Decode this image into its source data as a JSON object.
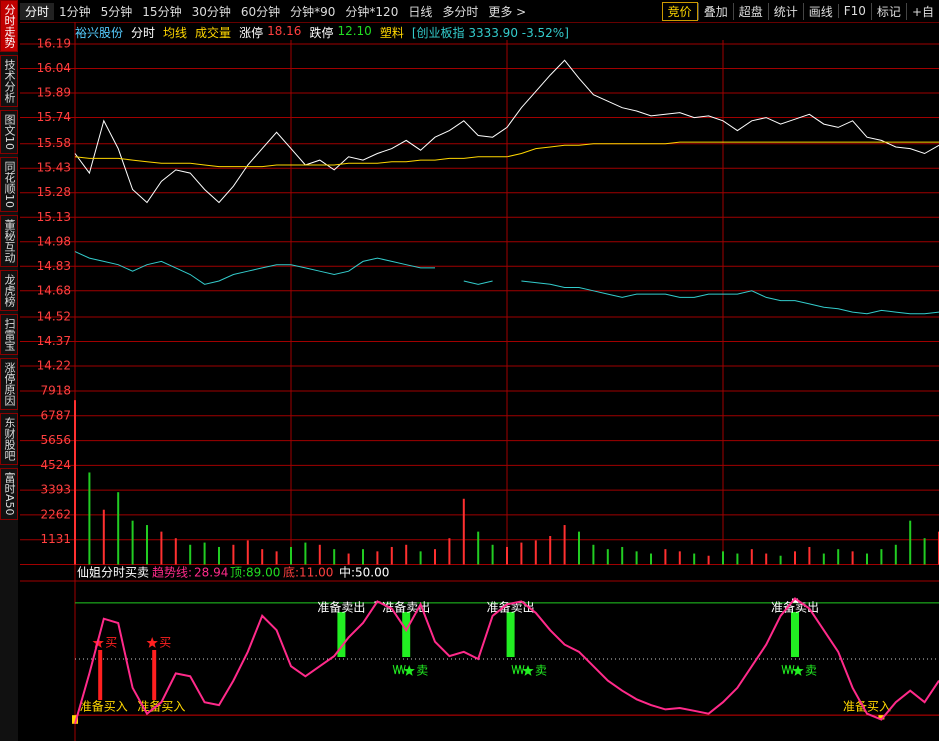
{
  "sidebar": [
    "分时走势",
    "技术分析",
    "图文10",
    "同花顺10",
    "董秘互动",
    "龙虎榜",
    "扫雷宝",
    "涨停原因",
    "东财股吧",
    "富时A50"
  ],
  "toolbar": {
    "left": [
      "分时",
      "1分钟",
      "5分钟",
      "15分钟",
      "30分钟",
      "60分钟",
      "分钟*90",
      "分钟*120",
      "日线",
      "多分时",
      "更多 >"
    ],
    "right": [
      "竞价",
      "叠加",
      "超盘",
      "统计",
      "画线",
      "F10",
      "标记",
      "+自"
    ]
  },
  "info": {
    "stock": "裕兴股份",
    "limit_up_label": "涨停",
    "limit_up": 18.16,
    "limit_down_label": "跌停",
    "limit_down": 12.1,
    "limit_down_text": "12.10",
    "sector": "塑料",
    "index": "[创业板指 3333.90 -3.52%]"
  },
  "chart_data": [
    {
      "type": "line",
      "xlim": [
        0,
        240
      ],
      "ylim": [
        14.22,
        16.19
      ],
      "yticks": [
        16.19,
        16.04,
        15.89,
        15.74,
        15.58,
        15.43,
        15.28,
        15.13,
        14.98,
        14.83,
        14.68,
        14.52,
        14.37,
        14.22
      ],
      "x": [
        0,
        4,
        8,
        12,
        16,
        20,
        24,
        28,
        32,
        36,
        40,
        44,
        48,
        52,
        56,
        60,
        64,
        68,
        72,
        76,
        80,
        84,
        88,
        92,
        96,
        100,
        104,
        108,
        112,
        116,
        120,
        124,
        128,
        132,
        136,
        140,
        144,
        148,
        152,
        156,
        160,
        164,
        168,
        172,
        176,
        180,
        184,
        188,
        192,
        196,
        200,
        204,
        208,
        212,
        216,
        220,
        224,
        228,
        232,
        236,
        240
      ],
      "series": [
        {
          "name": "分时",
          "color": "#ffffff",
          "values": [
            15.52,
            15.4,
            15.72,
            15.55,
            15.3,
            15.22,
            15.35,
            15.42,
            15.4,
            15.3,
            15.22,
            15.32,
            15.45,
            15.55,
            15.65,
            15.55,
            15.45,
            15.48,
            15.42,
            15.5,
            15.48,
            15.52,
            15.55,
            15.6,
            15.54,
            15.62,
            15.66,
            15.72,
            15.63,
            15.62,
            15.68,
            15.8,
            15.9,
            16.0,
            16.09,
            15.98,
            15.88,
            15.84,
            15.8,
            15.78,
            15.75,
            15.76,
            15.77,
            15.74,
            15.75,
            15.72,
            15.66,
            15.72,
            15.74,
            15.7,
            15.73,
            15.76,
            15.7,
            15.68,
            15.72,
            15.62,
            15.6,
            15.56,
            15.55,
            15.52,
            15.57
          ]
        },
        {
          "name": "均线",
          "color": "#ffd700",
          "values": [
            15.5,
            15.49,
            15.49,
            15.49,
            15.48,
            15.47,
            15.46,
            15.46,
            15.46,
            15.45,
            15.44,
            15.44,
            15.44,
            15.44,
            15.45,
            15.45,
            15.45,
            15.45,
            15.45,
            15.46,
            15.46,
            15.46,
            15.47,
            15.47,
            15.48,
            15.48,
            15.49,
            15.49,
            15.5,
            15.5,
            15.5,
            15.52,
            15.55,
            15.56,
            15.57,
            15.57,
            15.58,
            15.58,
            15.58,
            15.58,
            15.58,
            15.58,
            15.59,
            15.59,
            15.59,
            15.59,
            15.59,
            15.59,
            15.59,
            15.59,
            15.59,
            15.59,
            15.59,
            15.59,
            15.59,
            15.59,
            15.59,
            15.59,
            15.59,
            15.59,
            15.59
          ]
        },
        {
          "color": "#33cccc",
          "values": [
            14.92,
            14.88,
            14.86,
            14.84,
            14.8,
            14.84,
            14.86,
            14.82,
            14.78,
            14.72,
            14.74,
            14.78,
            14.8,
            14.82,
            14.84,
            14.84,
            14.82,
            14.8,
            14.78,
            14.8,
            14.86,
            14.88,
            14.86,
            14.84,
            14.82,
            14.82,
            null,
            14.74,
            14.72,
            14.74,
            null,
            14.74,
            14.73,
            14.72,
            14.7,
            14.7,
            14.68,
            14.66,
            14.64,
            14.66,
            14.66,
            14.66,
            14.64,
            14.64,
            14.66,
            14.66,
            14.66,
            14.68,
            14.64,
            14.62,
            14.62,
            14.6,
            14.58,
            14.57,
            14.55,
            14.54,
            14.56,
            14.55,
            14.54,
            14.54,
            14.55
          ]
        }
      ]
    },
    {
      "type": "bar",
      "title": "成交量",
      "xlim": [
        0,
        240
      ],
      "ylim": [
        0,
        7918
      ],
      "yticks": [
        7918,
        6787,
        5656,
        4524,
        3393,
        2262,
        1131
      ],
      "x": [
        0,
        4,
        8,
        12,
        16,
        20,
        24,
        28,
        32,
        36,
        40,
        44,
        48,
        52,
        56,
        60,
        64,
        68,
        72,
        76,
        80,
        84,
        88,
        92,
        96,
        100,
        104,
        108,
        112,
        116,
        120,
        124,
        128,
        132,
        136,
        140,
        144,
        148,
        152,
        156,
        160,
        164,
        168,
        172,
        176,
        180,
        184,
        188,
        192,
        196,
        200,
        204,
        208,
        212,
        216,
        220,
        224,
        228,
        232,
        236,
        240
      ],
      "up_color": "#ff3030",
      "down_color": "#22cc22",
      "values": [
        7500,
        4200,
        2500,
        3300,
        2000,
        1800,
        1500,
        1200,
        900,
        1000,
        800,
        900,
        1100,
        700,
        600,
        800,
        1000,
        900,
        700,
        500,
        700,
        600,
        800,
        900,
        600,
        700,
        1200,
        3000,
        1500,
        900,
        800,
        1000,
        1100,
        1300,
        1800,
        1500,
        900,
        700,
        800,
        600,
        500,
        700,
        600,
        500,
        400,
        600,
        500,
        700,
        500,
        400,
        600,
        800,
        500,
        700,
        600,
        500,
        700,
        900,
        2000,
        1200,
        1500
      ]
    },
    {
      "type": "line",
      "title": "仙姐分时买卖",
      "xlim": [
        0,
        240
      ],
      "ylim": [
        0,
        100
      ],
      "trend_label": "趋势线:",
      "trend_value": 28.94,
      "top_label": "顶:",
      "top": {
        "value": 89,
        "label": "89.00"
      },
      "bottom_label": "底:",
      "bottom": {
        "value": 11,
        "label": "11.00"
      },
      "mid_label": "中:",
      "mid": {
        "value": 50,
        "label": "50.00"
      },
      "x": [
        0,
        4,
        8,
        12,
        16,
        20,
        24,
        28,
        32,
        36,
        40,
        44,
        48,
        52,
        56,
        60,
        64,
        68,
        72,
        76,
        80,
        84,
        88,
        92,
        96,
        100,
        104,
        108,
        112,
        116,
        120,
        124,
        128,
        132,
        136,
        140,
        144,
        148,
        152,
        156,
        160,
        164,
        168,
        172,
        176,
        180,
        184,
        188,
        192,
        196,
        200,
        204,
        208,
        212,
        216,
        220,
        224,
        228,
        232,
        236,
        240
      ],
      "series": [
        {
          "color": "#ff2a8a",
          "values": [
            5,
            40,
            78,
            75,
            30,
            12,
            20,
            40,
            38,
            20,
            18,
            35,
            55,
            80,
            70,
            45,
            38,
            45,
            52,
            65,
            75,
            90,
            85,
            70,
            88,
            62,
            52,
            55,
            50,
            80,
            88,
            90,
            82,
            70,
            60,
            55,
            45,
            35,
            28,
            22,
            18,
            15,
            16,
            14,
            12,
            20,
            30,
            45,
            60,
            80,
            92,
            85,
            70,
            55,
            30,
            12,
            8,
            20,
            28,
            20,
            35
          ]
        }
      ],
      "sell_ready": [
        {
          "x": 74,
          "label": "准备卖出"
        },
        {
          "x": 92,
          "label": "准备卖出"
        },
        {
          "x": 121,
          "label": "准备卖出"
        },
        {
          "x": 200,
          "label": "准备卖出"
        }
      ],
      "sell": [
        {
          "x": 92,
          "label": "卖"
        },
        {
          "x": 125,
          "label": "卖"
        },
        {
          "x": 200,
          "label": "卖"
        }
      ],
      "buy_ready": [
        {
          "x": 8,
          "label": "准备买入"
        },
        {
          "x": 24,
          "label": "准备买入"
        },
        {
          "x": 220,
          "label": "准备买入"
        }
      ],
      "buy": [
        {
          "x": 7,
          "label": "买"
        },
        {
          "x": 22,
          "label": "买"
        }
      ]
    }
  ]
}
